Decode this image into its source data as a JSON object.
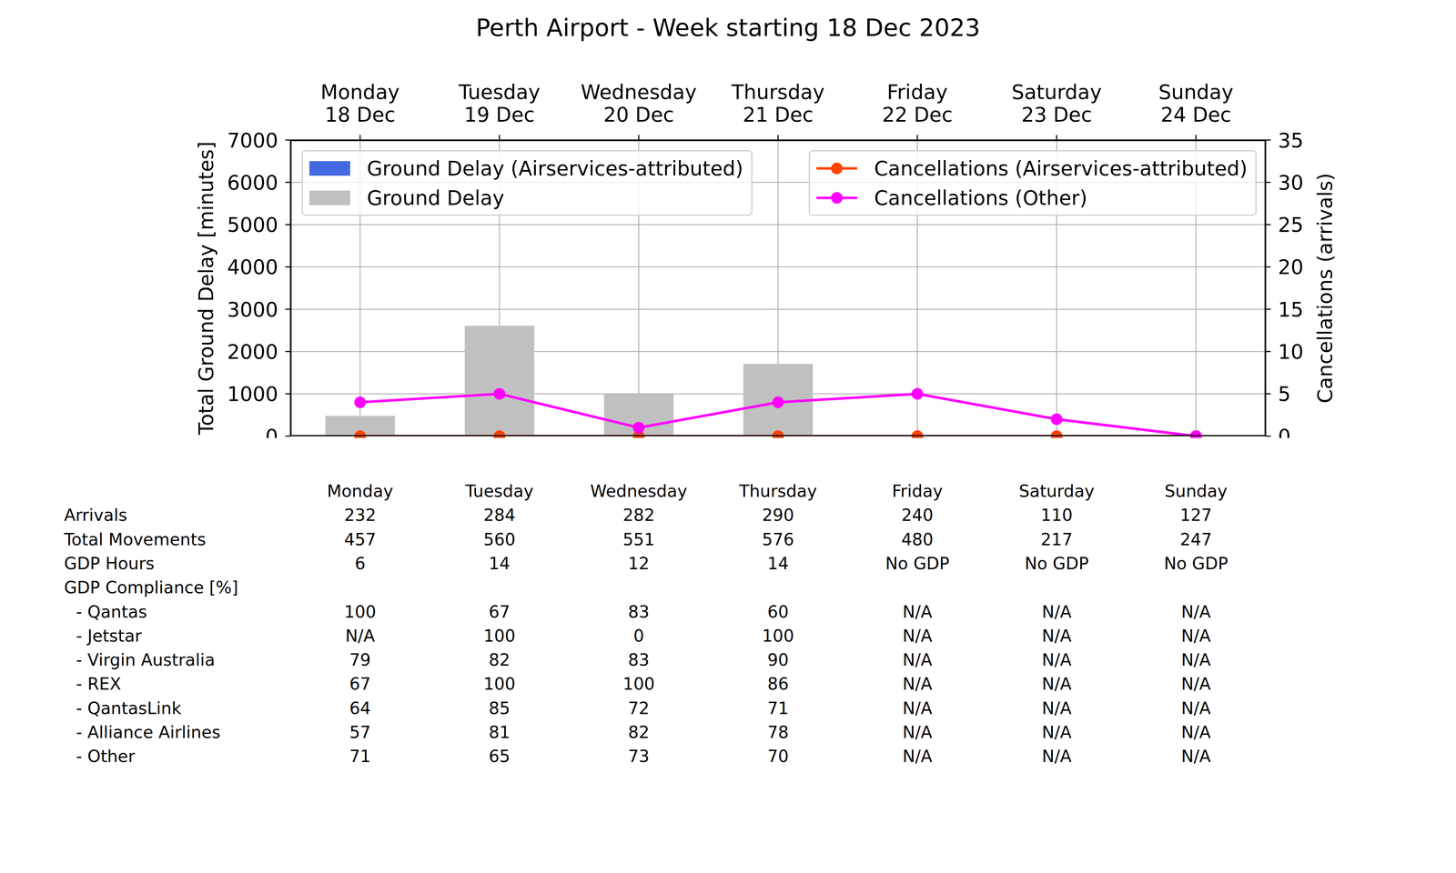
{
  "chart_data": {
    "type": "bar",
    "title": "Perth Airport - Week starting 18 Dec 2023",
    "categories": [
      "Monday\n18 Dec",
      "Tuesday\n19 Dec",
      "Wednesday\n20 Dec",
      "Thursday\n21 Dec",
      "Friday\n22 Dec",
      "Saturday\n23 Dec",
      "Sunday\n24 Dec"
    ],
    "ylabel": "Total Ground Delay [minutes]",
    "y2label": "Cancellations (arrivals)",
    "ylim": [
      0,
      7000
    ],
    "yticks": [
      0,
      1000,
      2000,
      3000,
      4000,
      5000,
      6000,
      7000
    ],
    "y2lim": [
      0,
      35
    ],
    "y2ticks": [
      0,
      5,
      10,
      15,
      20,
      25,
      30,
      35
    ],
    "grid": true,
    "legend": "top",
    "series": [
      {
        "name": "Ground Delay (Airservices-attributed)",
        "type": "bar",
        "color": "#4169e1",
        "values": [
          0,
          0,
          0,
          0,
          0,
          0,
          0
        ]
      },
      {
        "name": "Ground Delay",
        "type": "bar",
        "color": "#c0c0c0",
        "values": [
          480,
          2610,
          990,
          1710,
          0,
          0,
          0
        ]
      },
      {
        "name": "Cancellations (Airservices-attributed)",
        "type": "line",
        "axis": "y2",
        "color": "#ff4500",
        "marker": "circle",
        "values": [
          0,
          0,
          0,
          0,
          0,
          0,
          0
        ]
      },
      {
        "name": "Cancellations (Other)",
        "type": "line",
        "axis": "y2",
        "color": "#ff00ff",
        "marker": "circle",
        "values": [
          4,
          5,
          1,
          4,
          5,
          2,
          0
        ]
      }
    ]
  },
  "table": {
    "columns": [
      "Monday",
      "Tuesday",
      "Wednesday",
      "Thursday",
      "Friday",
      "Saturday",
      "Sunday"
    ],
    "rows": [
      {
        "label": "Arrivals",
        "values": [
          232,
          284,
          282,
          290,
          240,
          110,
          127
        ]
      },
      {
        "label": "Total Movements",
        "values": [
          457,
          560,
          551,
          576,
          480,
          217,
          247
        ]
      },
      {
        "label": "GDP Hours",
        "values": [
          6,
          14,
          12,
          14,
          "No GDP",
          "No GDP",
          "No GDP"
        ]
      }
    ],
    "compliance": {
      "label": "GDP Compliance [%]",
      "rows": [
        {
          "label": "- Qantas",
          "values": [
            100,
            67,
            83,
            60,
            "N/A",
            "N/A",
            "N/A"
          ]
        },
        {
          "label": "- Jetstar",
          "values": [
            "N/A",
            100,
            0,
            100,
            "N/A",
            "N/A",
            "N/A"
          ]
        },
        {
          "label": "- Virgin Australia",
          "values": [
            79,
            82,
            83,
            90,
            "N/A",
            "N/A",
            "N/A"
          ]
        },
        {
          "label": "- REX",
          "values": [
            67,
            100,
            100,
            86,
            "N/A",
            "N/A",
            "N/A"
          ]
        },
        {
          "label": "- QantasLink",
          "values": [
            64,
            85,
            72,
            71,
            "N/A",
            "N/A",
            "N/A"
          ]
        },
        {
          "label": "- Alliance Airlines",
          "values": [
            57,
            81,
            82,
            78,
            "N/A",
            "N/A",
            "N/A"
          ]
        },
        {
          "label": "- Other",
          "values": [
            71,
            65,
            73,
            70,
            "N/A",
            "N/A",
            "N/A"
          ]
        }
      ]
    }
  }
}
